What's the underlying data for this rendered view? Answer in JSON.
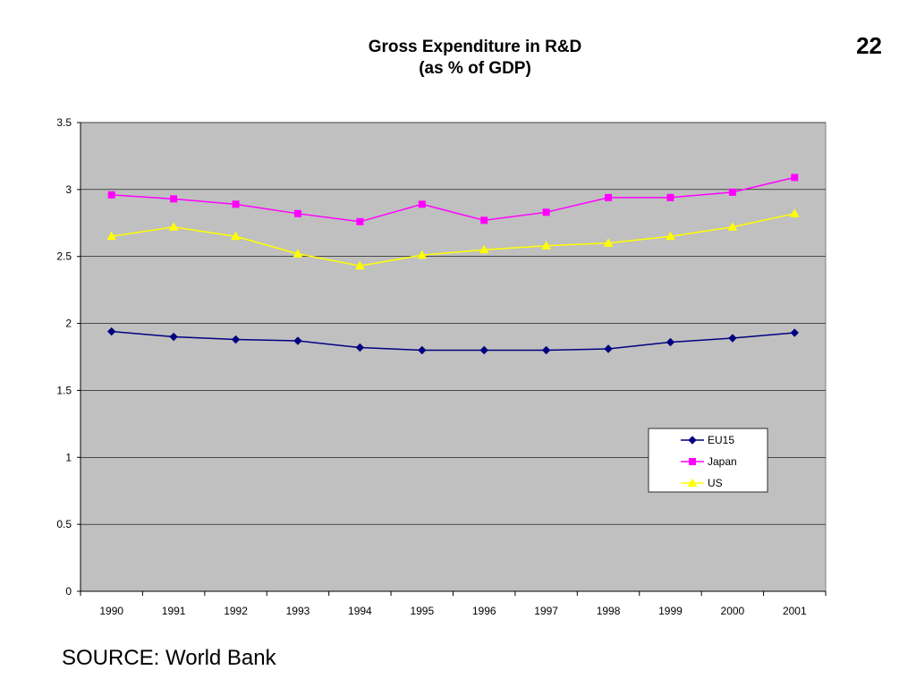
{
  "page_number": "22",
  "source": "SOURCE: World Bank",
  "chart_data": {
    "type": "line",
    "title": [
      "Gross Expenditure in R&D",
      "(as % of GDP)"
    ],
    "xlabel": "",
    "ylabel": "",
    "categories": [
      "1990",
      "1991",
      "1992",
      "1993",
      "1994",
      "1995",
      "1996",
      "1997",
      "1998",
      "1999",
      "2000",
      "2001"
    ],
    "ylim": [
      0,
      3.5
    ],
    "yticks": [
      "0",
      "0.5",
      "1",
      "1.5",
      "2",
      "2.5",
      "3",
      "3.5"
    ],
    "ytick_values": [
      0,
      0.5,
      1,
      1.5,
      2,
      2.5,
      3,
      3.5
    ],
    "grid": true,
    "plot_background": "#c0c0c0",
    "legend_placement": "lower-right",
    "series": [
      {
        "name": "EU15",
        "color": "#000080",
        "marker": "diamond",
        "values": [
          1.94,
          1.9,
          1.88,
          1.87,
          1.82,
          1.8,
          1.8,
          1.8,
          1.81,
          1.86,
          1.89,
          1.93
        ]
      },
      {
        "name": "Japan",
        "color": "#ff00ff",
        "marker": "square",
        "values": [
          2.96,
          2.93,
          2.89,
          2.82,
          2.76,
          2.89,
          2.77,
          2.83,
          2.94,
          2.94,
          2.98,
          3.09
        ]
      },
      {
        "name": "US",
        "color": "#ffff00",
        "marker": "triangle",
        "values": [
          2.65,
          2.72,
          2.65,
          2.52,
          2.43,
          2.51,
          2.55,
          2.58,
          2.6,
          2.65,
          2.72,
          2.82
        ]
      }
    ]
  }
}
